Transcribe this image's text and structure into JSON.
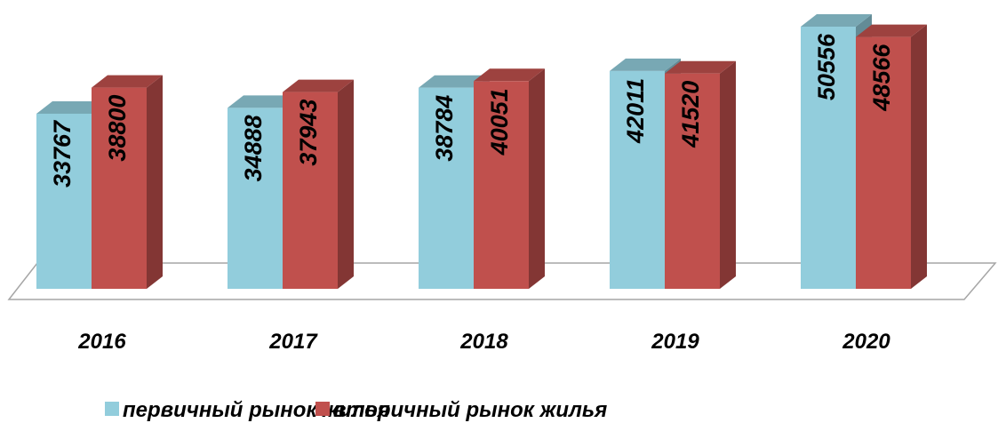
{
  "chart_data": {
    "type": "bar3d",
    "categories": [
      "2016",
      "2017",
      "2018",
      "2019",
      "2020"
    ],
    "series": [
      {
        "name": "первичный рынок жилья",
        "color": "#92cddc",
        "values": [
          33767,
          34888,
          38784,
          42011,
          50556
        ]
      },
      {
        "name": "вторичный рынок жилья",
        "color": "#c0504d",
        "values": [
          38800,
          37943,
          40051,
          41520,
          48566
        ]
      }
    ],
    "legend": "bottom"
  }
}
